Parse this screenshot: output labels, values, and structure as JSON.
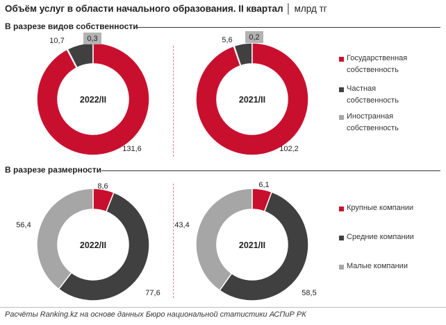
{
  "title": {
    "main": "Объём услуг в области начального образования. II квартал",
    "unit": "млрд тг"
  },
  "footer": "Расчёты Ranking.kz на основе данных Бюро национальной статистики АСПиР РК",
  "colors": {
    "red": "#c8102e",
    "dark": "#404040",
    "grey": "#a6a6a6"
  },
  "chart_data": [
    {
      "type": "pie",
      "variant": "donut",
      "section": "В разрезе видов собственности",
      "center_label": "2022/II",
      "categories": [
        "Государственная собственность",
        "Частная собственность",
        "Иностранная собственность"
      ],
      "values": [
        131.6,
        10.7,
        0.3
      ],
      "value_labels": [
        "131,6",
        "10,7",
        "0,3"
      ],
      "colors": [
        "#c8102e",
        "#404040",
        "#a6a6a6"
      ]
    },
    {
      "type": "pie",
      "variant": "donut",
      "section": "В разрезе видов собственности",
      "center_label": "2021/II",
      "categories": [
        "Государственная собственность",
        "Частная собственность",
        "Иностранная собственность"
      ],
      "values": [
        102.2,
        5.6,
        0.2
      ],
      "value_labels": [
        "102,2",
        "5,6",
        "0,2"
      ],
      "colors": [
        "#c8102e",
        "#404040",
        "#a6a6a6"
      ]
    },
    {
      "type": "pie",
      "variant": "donut",
      "section": "В разрезе размерности",
      "center_label": "2022/II",
      "categories": [
        "Крупные компании",
        "Средние компании",
        "Малые компании"
      ],
      "values": [
        8.6,
        77.6,
        56.4
      ],
      "value_labels": [
        "8,6",
        "77,6",
        "56,4"
      ],
      "colors": [
        "#c8102e",
        "#404040",
        "#a6a6a6"
      ]
    },
    {
      "type": "pie",
      "variant": "donut",
      "section": "В разрезе размерности",
      "center_label": "2021/II",
      "categories": [
        "Крупные компании",
        "Средние компании",
        "Малые компании"
      ],
      "values": [
        6.1,
        58.5,
        43.4
      ],
      "value_labels": [
        "6,1",
        "58,5",
        "43,4"
      ],
      "colors": [
        "#c8102e",
        "#404040",
        "#a6a6a6"
      ]
    }
  ],
  "sections": [
    "В разрезе видов собственности",
    "В разрезе размерности"
  ],
  "legends": [
    {
      "items": [
        {
          "lines": [
            "Государственная",
            "собственность"
          ],
          "color": "#c8102e"
        },
        {
          "lines": [
            "Частная",
            "собственность"
          ],
          "color": "#404040"
        },
        {
          "lines": [
            "Иностранная",
            "собственность"
          ],
          "color": "#a6a6a6"
        }
      ]
    },
    {
      "items": [
        {
          "lines": [
            "Крупные компании"
          ],
          "color": "#c8102e"
        },
        {
          "lines": [
            "Средние компании"
          ],
          "color": "#404040"
        },
        {
          "lines": [
            "Малые компании"
          ],
          "color": "#a6a6a6"
        }
      ]
    }
  ]
}
